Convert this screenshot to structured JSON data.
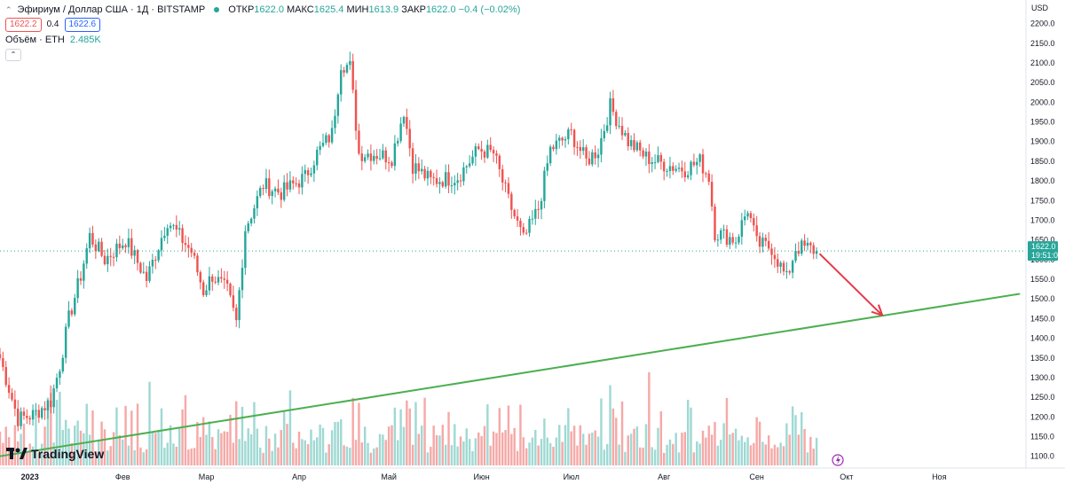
{
  "legend": {
    "symbol_title": "Эфириум / Доллар США · 1Д · BITSTAMP",
    "open_label": "ОТКР",
    "open_value": "1622.0",
    "high_label": "МАКС",
    "high_value": "1625.4",
    "low_label": "МИН",
    "low_value": "1613.9",
    "close_label": "ЗАКР",
    "close_value": "1622.0",
    "change_value": "−0.4 (−0.02%)",
    "bid": "1622.2",
    "spread": "0.4",
    "ask": "1622.6",
    "volume_label": "Объём · ETH",
    "volume_value": "2.485K"
  },
  "price_axis": {
    "currency": "USD",
    "current_price": "1622.0",
    "countdown": "19:51:09"
  },
  "branding": {
    "logo_text": "TradingView"
  },
  "colors": {
    "up": "#26a69a",
    "down": "#ef5350",
    "trendline": "#4caf50",
    "arrow": "#e53946",
    "vol_up": "#9fd9d3",
    "vol_down": "#f5a9a7"
  },
  "chart_data": {
    "type": "candlestick",
    "title": "Эфириум / Доллар США · 1Д · BITSTAMP",
    "xlabel": "",
    "ylabel": "",
    "ylim": [
      1070,
      2260
    ],
    "y_ticks": [
      1100,
      1150,
      1200,
      1250,
      1300,
      1350,
      1400,
      1450,
      1500,
      1550,
      1600,
      1650,
      1700,
      1750,
      1800,
      1850,
      1900,
      1950,
      2000,
      2050,
      2100,
      2150,
      2200
    ],
    "x_ticks": [
      {
        "label": "2023",
        "date": "2023-01-01"
      },
      {
        "label": "Фев",
        "date": "2023-02-01"
      },
      {
        "label": "Мар",
        "date": "2023-03-01"
      },
      {
        "label": "Апр",
        "date": "2023-04-01"
      },
      {
        "label": "Май",
        "date": "2023-05-01"
      },
      {
        "label": "Июн",
        "date": "2023-06-01"
      },
      {
        "label": "Июл",
        "date": "2023-07-01"
      },
      {
        "label": "Авг",
        "date": "2023-08-01"
      },
      {
        "label": "Сен",
        "date": "2023-09-01"
      },
      {
        "label": "Окт",
        "date": "2023-10-01"
      },
      {
        "label": "Ноя",
        "date": "2023-11-01"
      }
    ],
    "x_range": [
      "2022-12-22",
      "2023-11-30"
    ],
    "price_anchors": [
      {
        "date": "2022-12-22",
        "price": 1350
      },
      {
        "date": "2022-12-28",
        "price": 1195
      },
      {
        "date": "2023-01-02",
        "price": 1205
      },
      {
        "date": "2023-01-08",
        "price": 1240
      },
      {
        "date": "2023-01-11",
        "price": 1330
      },
      {
        "date": "2023-01-14",
        "price": 1450
      },
      {
        "date": "2023-01-18",
        "price": 1560
      },
      {
        "date": "2023-01-21",
        "price": 1660
      },
      {
        "date": "2023-01-26",
        "price": 1600
      },
      {
        "date": "2023-02-02",
        "price": 1650
      },
      {
        "date": "2023-02-09",
        "price": 1550
      },
      {
        "date": "2023-02-16",
        "price": 1700
      },
      {
        "date": "2023-02-24",
        "price": 1620
      },
      {
        "date": "2023-02-28",
        "price": 1520
      },
      {
        "date": "2023-03-03",
        "price": 1560
      },
      {
        "date": "2023-03-08",
        "price": 1520
      },
      {
        "date": "2023-03-11",
        "price": 1440
      },
      {
        "date": "2023-03-14",
        "price": 1680
      },
      {
        "date": "2023-03-20",
        "price": 1790
      },
      {
        "date": "2023-03-26",
        "price": 1770
      },
      {
        "date": "2023-04-03",
        "price": 1810
      },
      {
        "date": "2023-04-07",
        "price": 1870
      },
      {
        "date": "2023-04-12",
        "price": 1920
      },
      {
        "date": "2023-04-15",
        "price": 2100
      },
      {
        "date": "2023-04-18",
        "price": 2090
      },
      {
        "date": "2023-04-21",
        "price": 1870
      },
      {
        "date": "2023-04-26",
        "price": 1870
      },
      {
        "date": "2023-05-02",
        "price": 1860
      },
      {
        "date": "2023-05-06",
        "price": 1980
      },
      {
        "date": "2023-05-09",
        "price": 1840
      },
      {
        "date": "2023-05-15",
        "price": 1800
      },
      {
        "date": "2023-05-24",
        "price": 1810
      },
      {
        "date": "2023-05-31",
        "price": 1880
      },
      {
        "date": "2023-06-05",
        "price": 1870
      },
      {
        "date": "2023-06-10",
        "price": 1750
      },
      {
        "date": "2023-06-15",
        "price": 1650
      },
      {
        "date": "2023-06-20",
        "price": 1730
      },
      {
        "date": "2023-06-24",
        "price": 1880
      },
      {
        "date": "2023-07-01",
        "price": 1920
      },
      {
        "date": "2023-07-06",
        "price": 1850
      },
      {
        "date": "2023-07-10",
        "price": 1880
      },
      {
        "date": "2023-07-14",
        "price": 1990
      },
      {
        "date": "2023-07-20",
        "price": 1900
      },
      {
        "date": "2023-07-26",
        "price": 1860
      },
      {
        "date": "2023-08-02",
        "price": 1840
      },
      {
        "date": "2023-08-08",
        "price": 1830
      },
      {
        "date": "2023-08-13",
        "price": 1850
      },
      {
        "date": "2023-08-16",
        "price": 1810
      },
      {
        "date": "2023-08-18",
        "price": 1670
      },
      {
        "date": "2023-08-25",
        "price": 1650
      },
      {
        "date": "2023-08-29",
        "price": 1730
      },
      {
        "date": "2023-09-01",
        "price": 1640
      },
      {
        "date": "2023-09-06",
        "price": 1630
      },
      {
        "date": "2023-09-11",
        "price": 1550
      },
      {
        "date": "2023-09-14",
        "price": 1630
      },
      {
        "date": "2023-09-18",
        "price": 1630
      },
      {
        "date": "2023-09-21",
        "price": 1622
      }
    ],
    "series": [
      {
        "type": "candlestick",
        "values_from": "price_anchors"
      },
      {
        "type": "volume-histogram",
        "axis": "separate"
      }
    ],
    "annotations": [
      {
        "type": "trendline",
        "from": {
          "date": "2022-12-22",
          "price": 1100
        },
        "to": {
          "date": "2023-11-28",
          "price": 1513
        }
      },
      {
        "type": "arrow",
        "from": {
          "date": "2023-09-22",
          "price": 1615
        },
        "to": {
          "date": "2023-10-13",
          "price": 1458
        }
      },
      {
        "type": "price-line",
        "price": 1622
      }
    ],
    "grid": false,
    "legend": "top-left"
  }
}
